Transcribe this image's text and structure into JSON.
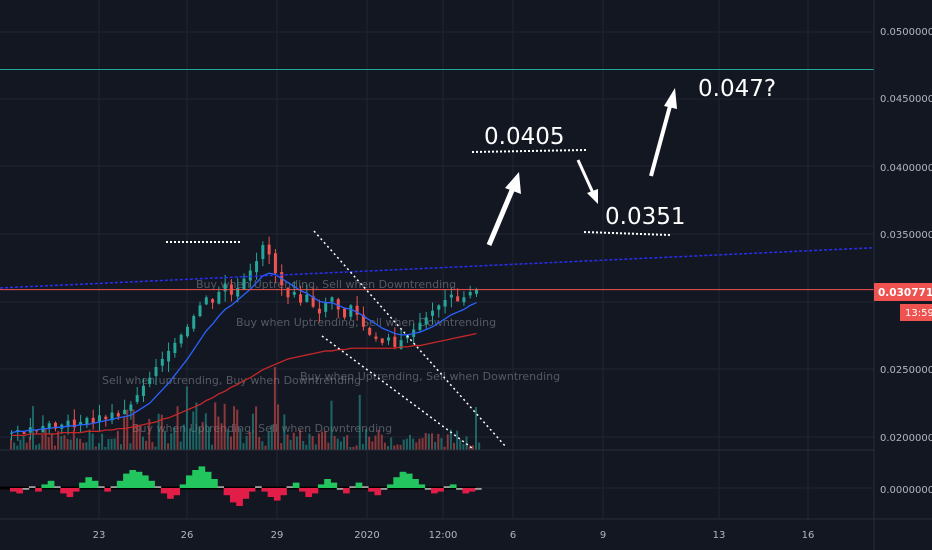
{
  "colors": {
    "background": "#131722",
    "grid": "#1f2433",
    "axis_text": "#b2b5be",
    "candle_up": "#26a69a",
    "candle_down": "#ef5350",
    "ma_fast": "#2962ff",
    "ma_slow": "#c62828",
    "price_line": "#ef5350",
    "blue_trend": "#2a2ef0",
    "teal_level": "#26a69a",
    "annotation": "#ffffff",
    "osc_up": "#22c55e",
    "osc_down": "#e11d48",
    "osc_neutral": "#9e9e9e"
  },
  "price_label": "0.03077155",
  "countdown_label": "13:59",
  "y_ticks": [
    "0.05000000",
    "0.04500000",
    "0.04000000",
    "0.03500000",
    "0.02500000",
    "0.02000000"
  ],
  "osc_tick": "0.00000000",
  "x_ticks": [
    "23",
    "26",
    "29",
    "2020",
    "12:00",
    "6",
    "9",
    "13",
    "16"
  ],
  "annotations": {
    "target_1": "0.0405",
    "target_2": "0.0351",
    "target_3": "0.047?"
  },
  "overlay_texts": [
    "Buy when Uptrending, Sell when Downtrending",
    "Buy when Uptrending, Sell when Downtrending",
    "Sell when uptrending, Buy when Downtrending",
    "Buy when Uptrending, Sell when Downtrending",
    "Buy when Uptrending, Sell when Downtrending"
  ],
  "chart_data": {
    "type": "candlestick",
    "title": "",
    "y_scale": "linear",
    "ylim": [
      0.0187,
      0.0534
    ],
    "grid": true,
    "legend": "none",
    "x_ticks": [
      "23",
      "26",
      "29",
      "2020",
      "12:00",
      "6",
      "9",
      "13",
      "16"
    ],
    "current_price": 0.03077155,
    "close_series": [
      0.0201,
      0.0203,
      0.02,
      0.0205,
      0.0202,
      0.0206,
      0.0208,
      0.0204,
      0.0207,
      0.021,
      0.0205,
      0.0209,
      0.0212,
      0.0208,
      0.0214,
      0.0211,
      0.0216,
      0.0213,
      0.0218,
      0.0222,
      0.0229,
      0.0236,
      0.0242,
      0.025,
      0.0256,
      0.0262,
      0.0268,
      0.0274,
      0.028,
      0.0288,
      0.0296,
      0.0302,
      0.0298,
      0.0306,
      0.0312,
      0.0304,
      0.0309,
      0.0316,
      0.0322,
      0.0329,
      0.0341,
      0.0334,
      0.032,
      0.0311,
      0.0302,
      0.0306,
      0.0298,
      0.0304,
      0.0295,
      0.029,
      0.0298,
      0.0302,
      0.0293,
      0.0287,
      0.0296,
      0.0289,
      0.028,
      0.0274,
      0.0271,
      0.0268,
      0.0272,
      0.0265,
      0.027,
      0.0274,
      0.0278,
      0.0283,
      0.0287,
      0.0292,
      0.0296,
      0.03,
      0.0304,
      0.0299,
      0.0302,
      0.0306,
      0.0308
    ],
    "lines": [
      {
        "name": "",
        "color": "#2962ff",
        "values": [
          0.0201,
          0.0202,
          0.0202,
          0.0203,
          0.0203,
          0.0204,
          0.0204,
          0.0205,
          0.0205,
          0.0206,
          0.0206,
          0.0207,
          0.0207,
          0.0208,
          0.0209,
          0.021,
          0.0211,
          0.0212,
          0.0213,
          0.0214,
          0.0217,
          0.022,
          0.0223,
          0.0228,
          0.0233,
          0.0238,
          0.0244,
          0.025,
          0.0256,
          0.0263,
          0.027,
          0.0277,
          0.0282,
          0.0288,
          0.0293,
          0.0296,
          0.03,
          0.0304,
          0.0308,
          0.0313,
          0.0318,
          0.032,
          0.0319,
          0.0316,
          0.0313,
          0.031,
          0.0307,
          0.0305,
          0.0302,
          0.0299,
          0.0298,
          0.0298,
          0.0296,
          0.0294,
          0.0293,
          0.0291,
          0.0288,
          0.0285,
          0.0282,
          0.0279,
          0.0277,
          0.0275,
          0.0274,
          0.0274,
          0.0275,
          0.0276,
          0.0278,
          0.028,
          0.0283,
          0.0286,
          0.0289,
          0.0291,
          0.0293,
          0.0296,
          0.0298
        ]
      },
      {
        "name": "",
        "color": "#c62828",
        "values": [
          0.0199,
          0.0199,
          0.0199,
          0.02,
          0.02,
          0.02,
          0.02,
          0.02,
          0.0201,
          0.0201,
          0.0201,
          0.0201,
          0.0202,
          0.0202,
          0.0202,
          0.0203,
          0.0203,
          0.0204,
          0.0204,
          0.0205,
          0.0206,
          0.0207,
          0.0208,
          0.0209,
          0.0211,
          0.0212,
          0.0214,
          0.0216,
          0.0218,
          0.022,
          0.0222,
          0.0225,
          0.0227,
          0.023,
          0.0232,
          0.0235,
          0.0237,
          0.024,
          0.0242,
          0.0245,
          0.0248,
          0.025,
          0.0252,
          0.0254,
          0.0256,
          0.0257,
          0.0258,
          0.0259,
          0.026,
          0.0261,
          0.0262,
          0.0262,
          0.0263,
          0.0263,
          0.0264,
          0.0264,
          0.0264,
          0.0264,
          0.0264,
          0.0264,
          0.0264,
          0.0264,
          0.0265,
          0.0265,
          0.0266,
          0.0266,
          0.0267,
          0.0268,
          0.0269,
          0.027,
          0.0271,
          0.0272,
          0.0273,
          0.0274,
          0.0275
        ]
      }
    ],
    "drawn_levels": [
      {
        "kind": "horizontal",
        "value": 0.0472,
        "color": "#26a69a"
      },
      {
        "kind": "horizontal",
        "value": 0.03077,
        "color": "#ef5350"
      },
      {
        "kind": "trendline",
        "from": 0.0309,
        "to": 0.0339,
        "color": "#2a2ef0"
      }
    ],
    "oscillator": {
      "values": [
        -0.2,
        -0.3,
        -0.1,
        0.1,
        -0.2,
        0.2,
        0.4,
        0.1,
        -0.3,
        -0.5,
        -0.2,
        0.3,
        0.6,
        0.4,
        0.1,
        -0.2,
        0.1,
        0.4,
        0.8,
        1.0,
        0.9,
        0.7,
        0.4,
        0.1,
        -0.3,
        -0.6,
        -0.4,
        0.2,
        0.7,
        1.0,
        1.2,
        0.9,
        0.5,
        0.1,
        -0.4,
        -0.8,
        -1.0,
        -0.6,
        -0.2,
        0.1,
        -0.2,
        -0.5,
        -0.7,
        -0.4,
        0.1,
        0.3,
        -0.2,
        -0.5,
        -0.3,
        0.2,
        0.5,
        0.3,
        -0.1,
        -0.3,
        0.1,
        0.3,
        0.1,
        -0.2,
        -0.4,
        -0.1,
        0.2,
        0.6,
        0.9,
        0.8,
        0.5,
        0.2,
        -0.1,
        -0.3,
        -0.2,
        0.1,
        0.2,
        -0.1,
        -0.3,
        -0.2,
        -0.1
      ]
    }
  }
}
